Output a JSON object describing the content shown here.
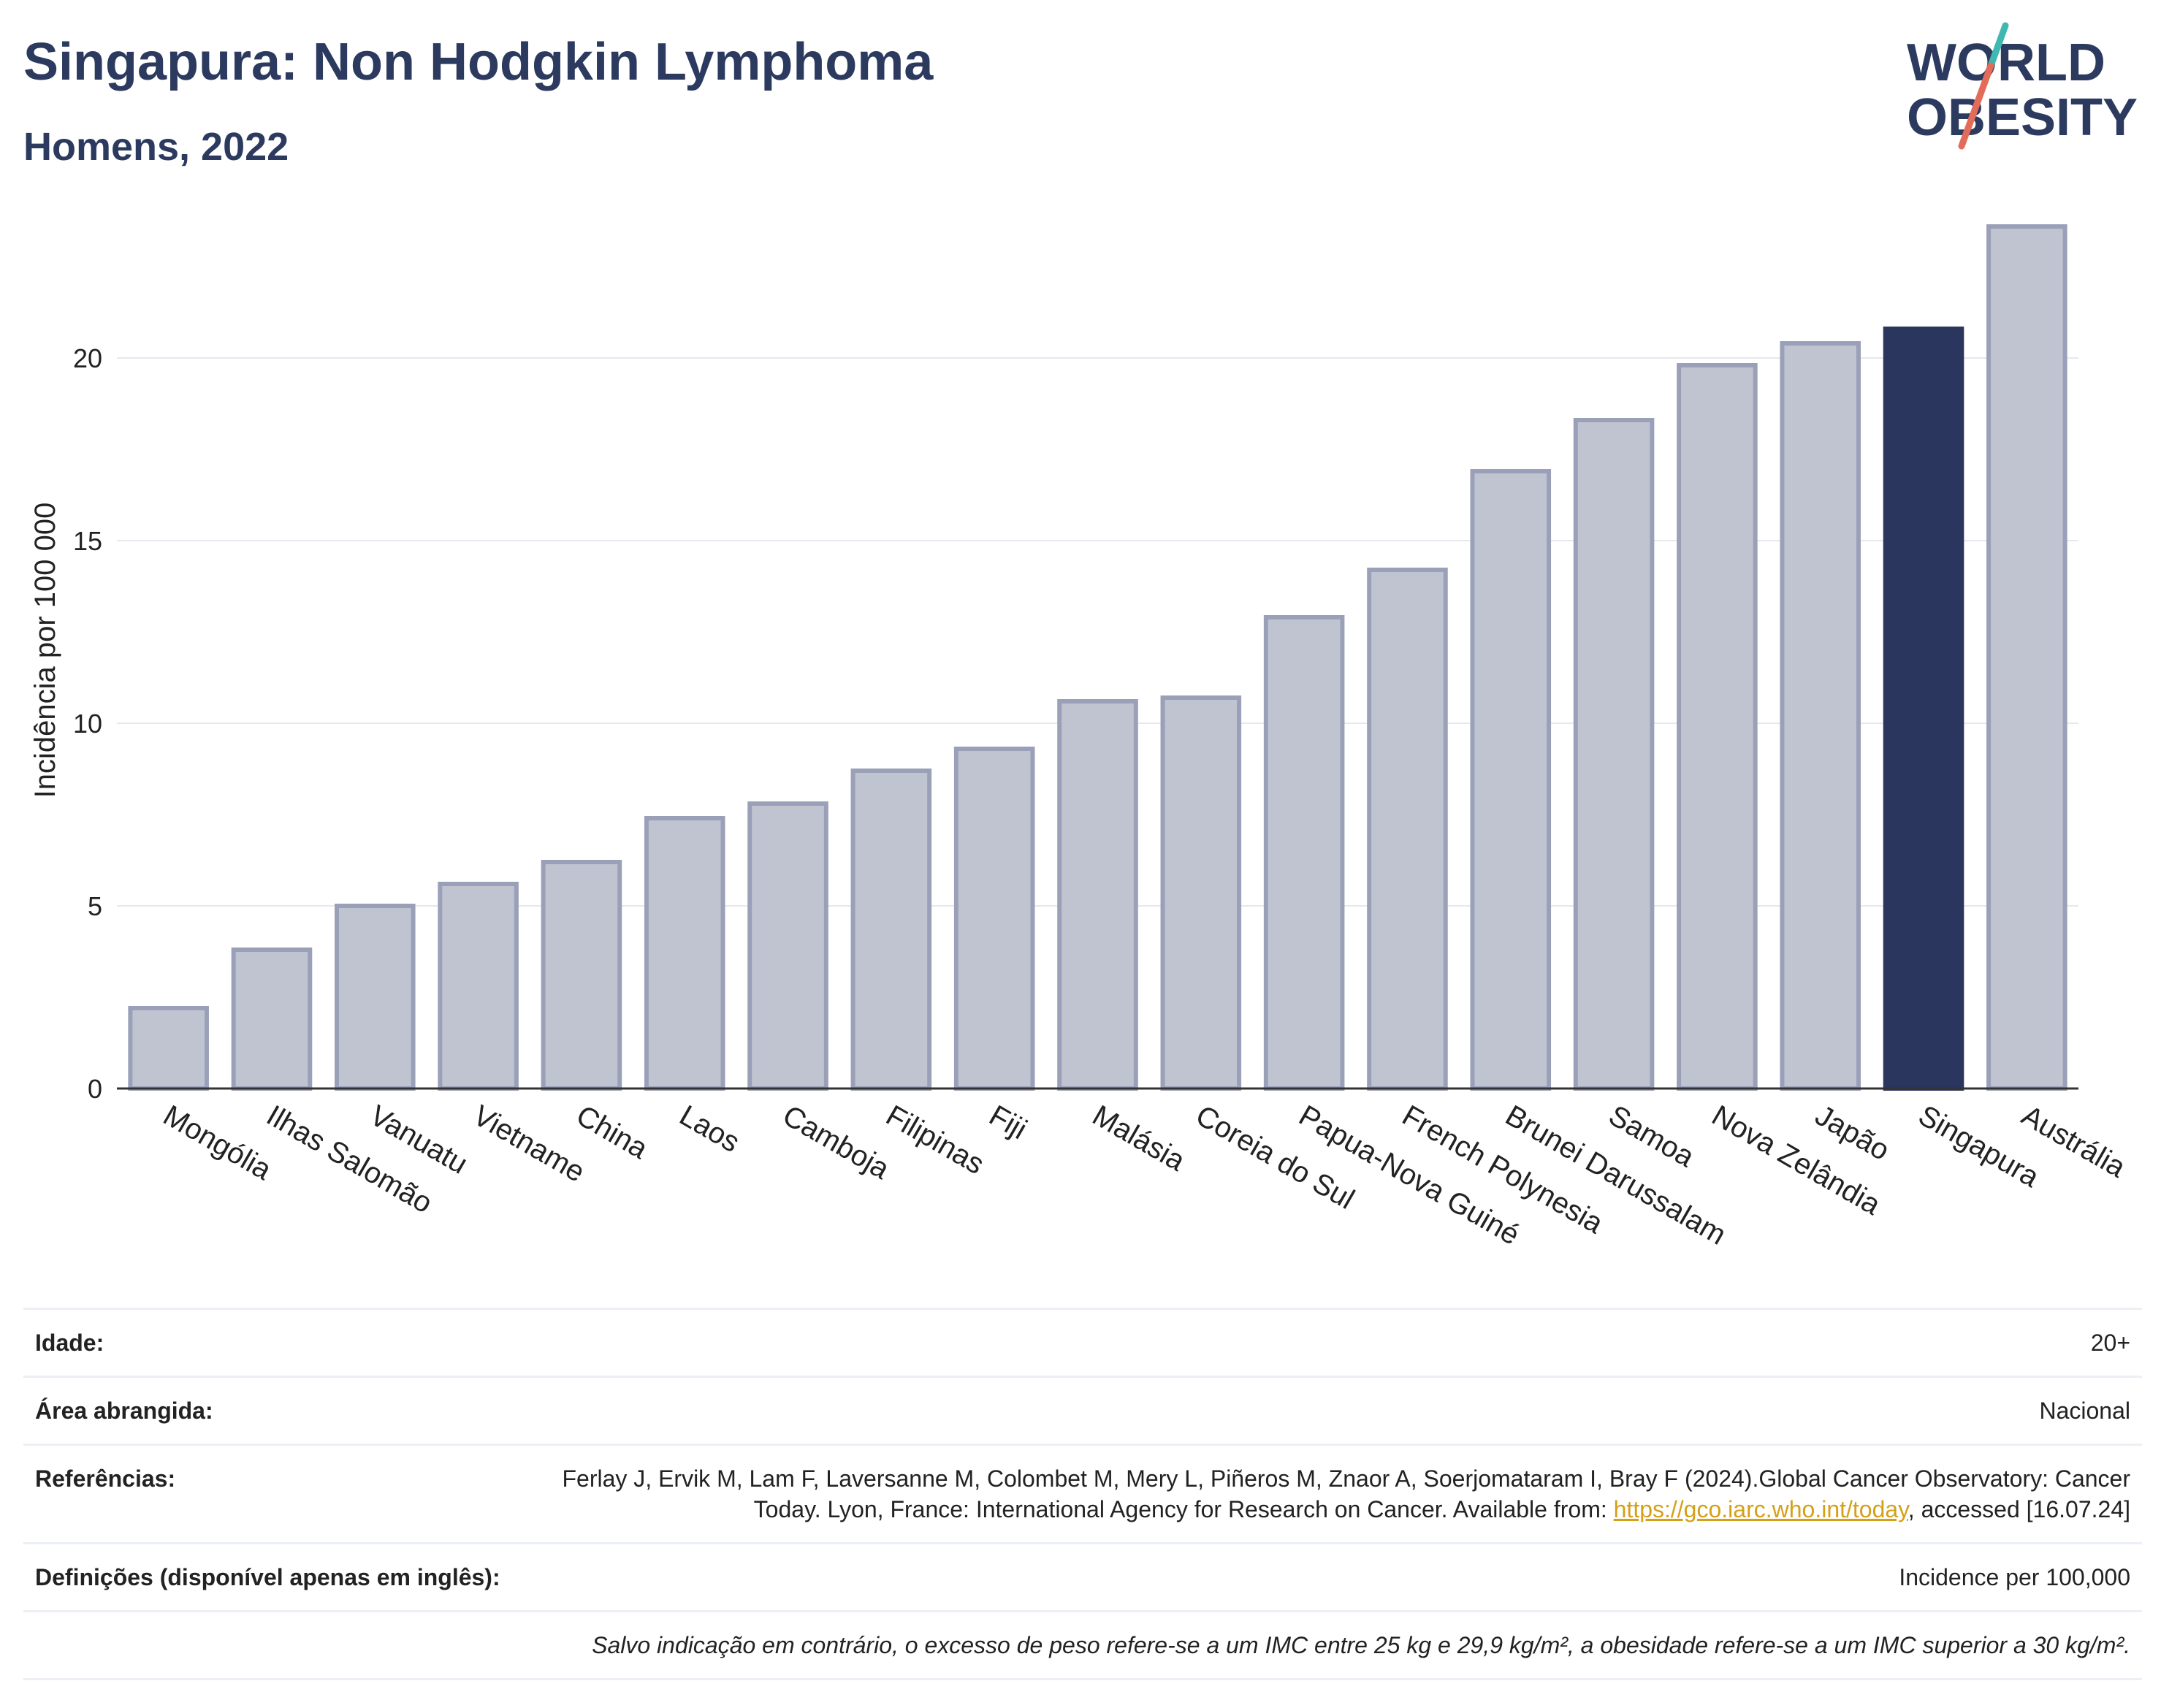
{
  "header": {
    "title": "Singapura: Non Hodgkin Lymphoma",
    "subtitle": "Homens, 2022"
  },
  "logo": {
    "line1": "WORLD",
    "line2": "OBESITY"
  },
  "colors": {
    "bar": "#c0c4d1",
    "bar_stroke": "#9aa0b8",
    "highlight": "#2b365f",
    "text": "#2b3a5e",
    "link": "#d4a017"
  },
  "chart_data": {
    "type": "bar",
    "ylabel": "Incidência por 100 000",
    "xlabel": "",
    "ylim": [
      0,
      24
    ],
    "yticks": [
      0,
      5,
      10,
      15,
      20
    ],
    "grid": true,
    "highlight": "Singapura",
    "categories": [
      "Mongólia",
      "Ilhas Salomão",
      "Vanuatu",
      "Vietname",
      "China",
      "Laos",
      "Camboja",
      "Filipinas",
      "Fiji",
      "Malásia",
      "Coreia do Sul",
      "Papua-Nova Guiné",
      "French Polynesia",
      "Brunei Darussalam",
      "Samoa",
      "Nova Zelândia",
      "Japão",
      "Singapura",
      "Austrália"
    ],
    "values": [
      2.2,
      3.8,
      5.0,
      5.6,
      6.2,
      7.4,
      7.8,
      8.7,
      9.3,
      10.6,
      10.7,
      12.9,
      14.2,
      16.9,
      18.3,
      19.8,
      20.4,
      20.8,
      23.6
    ]
  },
  "info": {
    "age_label": "Idade:",
    "age_value": "20+",
    "area_label": "Área abrangida:",
    "area_value": "Nacional",
    "ref_label": "Referências:",
    "ref_text_1": "Ferlay J, Ervik M, Lam F, Laversanne M, Colombet M, Mery L, Piñeros M, Znaor A, Soerjomataram I, Bray F (2024).Global Cancer Observatory: Cancer Today. Lyon, France: International Agency for Research on Cancer. Available from: ",
    "ref_link": "https://gco.iarc.who.int/today",
    "ref_text_2": ", accessed [16.07.24]",
    "def_label": "Definições (disponível apenas em inglês):",
    "def_value": "Incidence per 100,000",
    "note": "Salvo indicação em contrário, o excesso de peso refere-se a um IMC entre 25 kg e 29,9 kg/m², a obesidade refere-se a um IMC superior a 30 kg/m²."
  }
}
